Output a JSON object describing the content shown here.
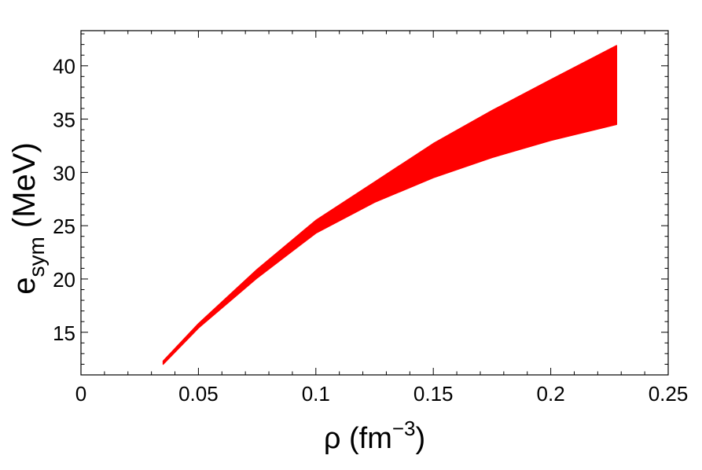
{
  "chart_data": {
    "type": "area",
    "title": "",
    "xlabel": {
      "base": "ρ (fm",
      "sup": "−3",
      "end": ")"
    },
    "ylabel": {
      "base": "e",
      "sub": "sym",
      "end": " (MeV)"
    },
    "xlim": [
      0,
      0.25
    ],
    "ylim": [
      11,
      43.3
    ],
    "xticks": [
      0,
      0.05,
      0.1,
      0.15,
      0.2,
      0.25
    ],
    "xtick_labels": [
      "0",
      "0.05",
      "0.1",
      "0.15",
      "0.2",
      "0.25"
    ],
    "yticks": [
      15,
      20,
      25,
      30,
      35,
      40
    ],
    "ytick_labels": [
      "15",
      "20",
      "25",
      "30",
      "35",
      "40"
    ],
    "band_color": "#ff0000",
    "grid": false,
    "legend": "none",
    "series": [
      {
        "x": [
          0.035,
          0.05,
          0.075,
          0.1,
          0.125,
          0.15,
          0.175,
          0.2,
          0.228
        ],
        "upper": [
          12.3,
          15.8,
          20.9,
          25.5,
          29.1,
          32.7,
          35.8,
          38.7,
          41.9
        ],
        "lower": [
          12.0,
          15.4,
          20.1,
          24.3,
          27.2,
          29.5,
          31.4,
          33.0,
          34.5
        ]
      }
    ]
  }
}
